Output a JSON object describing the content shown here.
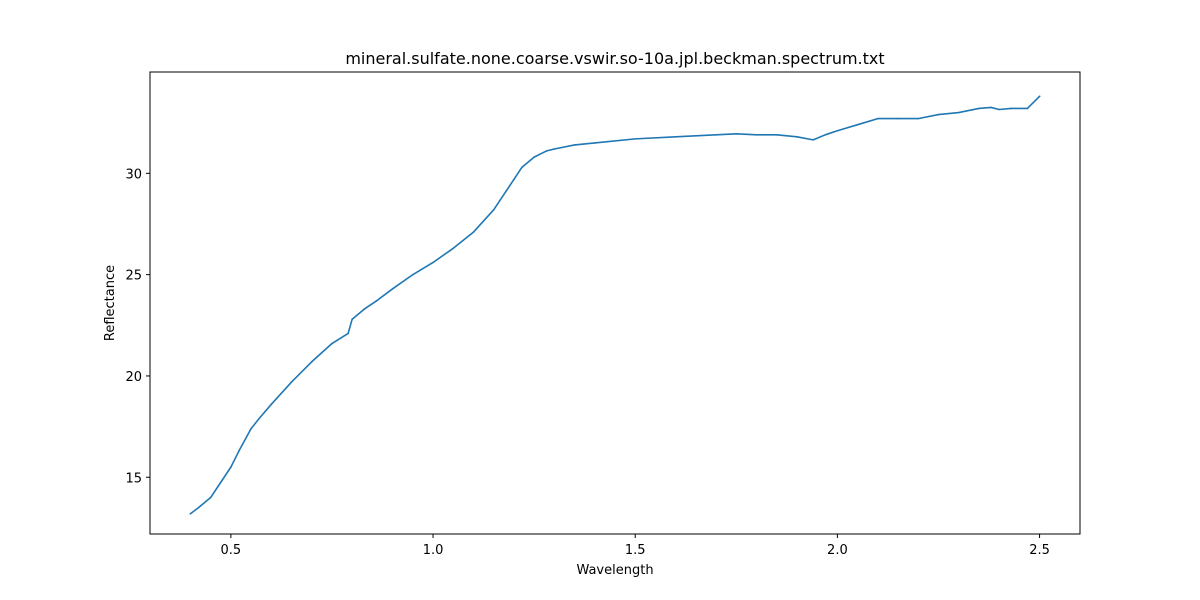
{
  "chart_data": {
    "type": "line",
    "title": "mineral.sulfate.none.coarse.vswir.so-10a.jpl.beckman.spectrum.txt",
    "xlabel": "Wavelength",
    "ylabel": "Reflectance",
    "xlim": [
      0.3,
      2.6
    ],
    "ylim": [
      12.2,
      35.0
    ],
    "xticks": [
      0.5,
      1.0,
      1.5,
      2.0,
      2.5
    ],
    "xtick_labels": [
      "0.5",
      "1.0",
      "1.5",
      "2.0",
      "2.5"
    ],
    "yticks": [
      15,
      20,
      25,
      30
    ],
    "ytick_labels": [
      "15",
      "20",
      "25",
      "30"
    ],
    "grid": false,
    "series": [
      {
        "color": "#1f77b4",
        "x": [
          0.4,
          0.42,
          0.45,
          0.47,
          0.5,
          0.52,
          0.55,
          0.57,
          0.6,
          0.65,
          0.7,
          0.75,
          0.79,
          0.8,
          0.83,
          0.86,
          0.9,
          0.95,
          1.0,
          1.05,
          1.1,
          1.15,
          1.18,
          1.2,
          1.22,
          1.25,
          1.28,
          1.3,
          1.35,
          1.4,
          1.5,
          1.6,
          1.7,
          1.75,
          1.8,
          1.85,
          1.9,
          1.94,
          1.97,
          2.0,
          2.05,
          2.1,
          2.15,
          2.2,
          2.25,
          2.3,
          2.35,
          2.38,
          2.4,
          2.43,
          2.47,
          2.5
        ],
        "y": [
          13.2,
          13.5,
          14.0,
          14.6,
          15.5,
          16.3,
          17.4,
          17.9,
          18.6,
          19.7,
          20.7,
          21.6,
          22.1,
          22.8,
          23.3,
          23.7,
          24.3,
          25.0,
          25.6,
          26.3,
          27.1,
          28.2,
          29.1,
          29.7,
          30.3,
          30.8,
          31.1,
          31.2,
          31.4,
          31.5,
          31.7,
          31.8,
          31.9,
          31.95,
          31.9,
          31.9,
          31.8,
          31.65,
          31.9,
          32.1,
          32.4,
          32.7,
          32.7,
          32.7,
          32.9,
          33.0,
          33.2,
          33.25,
          33.15,
          33.2,
          33.2,
          33.8
        ]
      }
    ]
  }
}
